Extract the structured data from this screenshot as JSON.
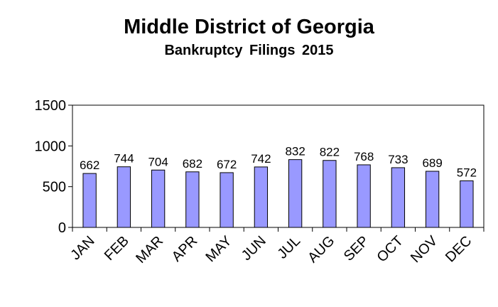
{
  "chart_data": {
    "type": "bar",
    "title": "Middle District of Georgia",
    "subtitle": "Bankruptcy  Filings 2015",
    "categories": [
      "JAN",
      "FEB",
      "MAR",
      "APR",
      "MAY",
      "JUN",
      "JUL",
      "AUG",
      "SEP",
      "OCT",
      "NOV",
      "DEC"
    ],
    "values": [
      662,
      744,
      704,
      682,
      672,
      742,
      832,
      822,
      768,
      733,
      689,
      572
    ],
    "data_labels": [
      "662",
      "744",
      "704",
      "682",
      "672",
      "742",
      "832",
      "822",
      "768",
      "733",
      "689",
      "572"
    ],
    "yticks": [
      "0",
      "500",
      "1000",
      "1500"
    ],
    "ytick_values": [
      0,
      500,
      1000,
      1500
    ],
    "ylim": [
      0,
      1500
    ],
    "grid": false,
    "legend": "none",
    "colors": {
      "bar_fill": "#9999ff",
      "bar_stroke": "#000000",
      "axis": "#000000"
    }
  }
}
